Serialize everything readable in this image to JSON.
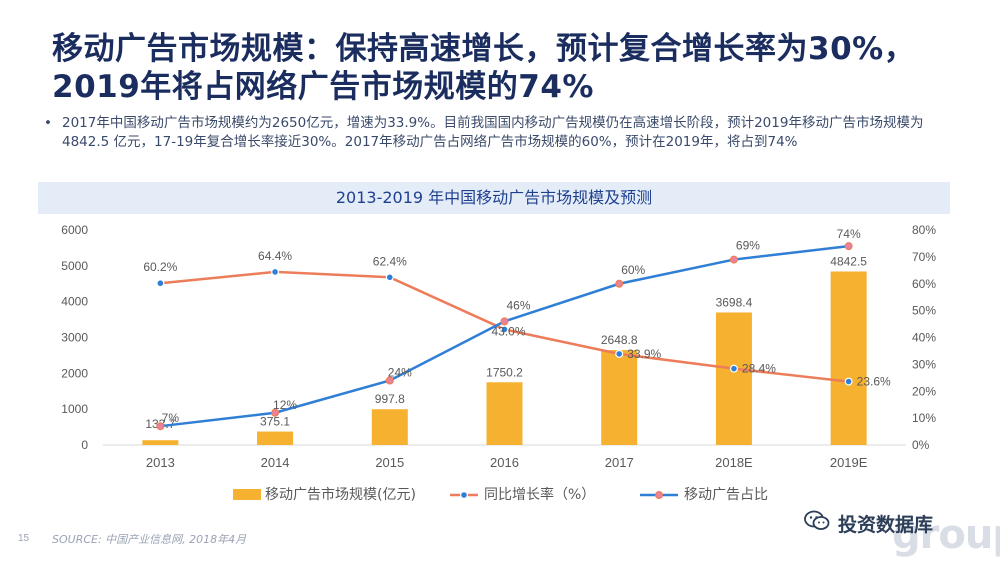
{
  "page": {
    "title": "移动广告市场规模：保持高速增长，预计复合增长率为30%，2019年将占网络广告市场规模的74%",
    "bullet_mark": "•",
    "bullet": "2017年中国移动广告市场规模约为2650亿元，增速为33.9%。目前我国国内移动广告规模仍在高速增长阶段，预计2019年移动广告市场规模为4842.5 亿元，17-19年复合增长率接近30%。2017年移动广告占网络广告市场规模的60%，预计在2019年，将占到74%",
    "source": "SOURCE: 中国产业信息网, 2018年4月",
    "page_number": "15",
    "logo_text": "投资数据库",
    "logo_ghost": "group"
  },
  "colors": {
    "bar": "#f5b12f",
    "growth_line": "#ed7d5a",
    "share_line": "#2f7fd6",
    "title_bar": "#e4edf7",
    "axis_text": "#595959"
  },
  "chart_data": {
    "type": "bar+line",
    "title": "2013-2019 年中国移动广告市场规模及预测",
    "categories": [
      "2013",
      "2014",
      "2015",
      "2016",
      "2017",
      "2018E",
      "2019E"
    ],
    "series": [
      {
        "name": "移动广告市场规模(亿元)",
        "type": "bar",
        "axis": "left",
        "values": [
          133.7,
          375.1,
          997.8,
          1750.2,
          2648.8,
          3698.4,
          4842.5
        ],
        "labels": [
          "133.7",
          "375.1",
          "997.8",
          "1750.2",
          "2648.8",
          "3698.4",
          "4842.5"
        ]
      },
      {
        "name": "同比增长率（%）",
        "type": "line",
        "axis": "right",
        "values": [
          60.2,
          64.4,
          62.4,
          43.0,
          33.9,
          28.4,
          23.6
        ],
        "labels": [
          "60.2%",
          "64.4%",
          "62.4%",
          "43.0%",
          "33.9%",
          "28.4%",
          "23.6%"
        ]
      },
      {
        "name": "移动广告占比",
        "type": "line",
        "axis": "right",
        "values": [
          7,
          12,
          24,
          46,
          60,
          69,
          74
        ],
        "labels": [
          "7%",
          "12%",
          "24%",
          "46%",
          "60%",
          "69%",
          "74%"
        ]
      }
    ],
    "y_left": {
      "min": 0,
      "max": 6000,
      "ticks": [
        "0",
        "1000",
        "2000",
        "3000",
        "4000",
        "5000",
        "6000"
      ]
    },
    "y_right": {
      "min": 0,
      "max": 80,
      "ticks": [
        "0%",
        "10%",
        "20%",
        "30%",
        "40%",
        "50%",
        "60%",
        "70%",
        "80%"
      ]
    },
    "grid": false,
    "legend": "bottom"
  }
}
